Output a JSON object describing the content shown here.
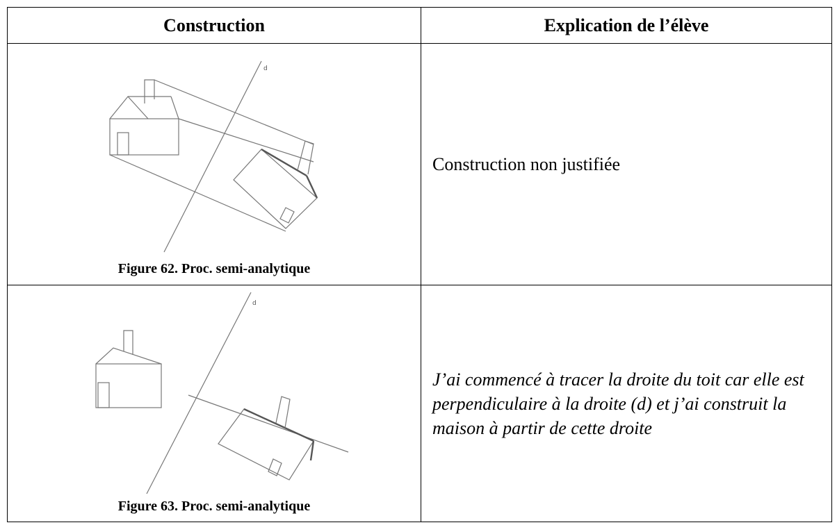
{
  "table": {
    "header": [
      "Construction",
      "Explication de l’élève"
    ],
    "rows": [
      {
        "figure_label": "d",
        "caption": "Figure 62. Proc. semi-analytique",
        "explanation": "Construction non justifiée"
      },
      {
        "figure_label": "d",
        "caption": "Figure 63. Proc. semi-analytique",
        "explanation": "J’ai commencé à tracer la droite du toit car elle est perpendiculaire à la droite (d) et j’ai construit la maison à partir de cette droite"
      }
    ]
  }
}
